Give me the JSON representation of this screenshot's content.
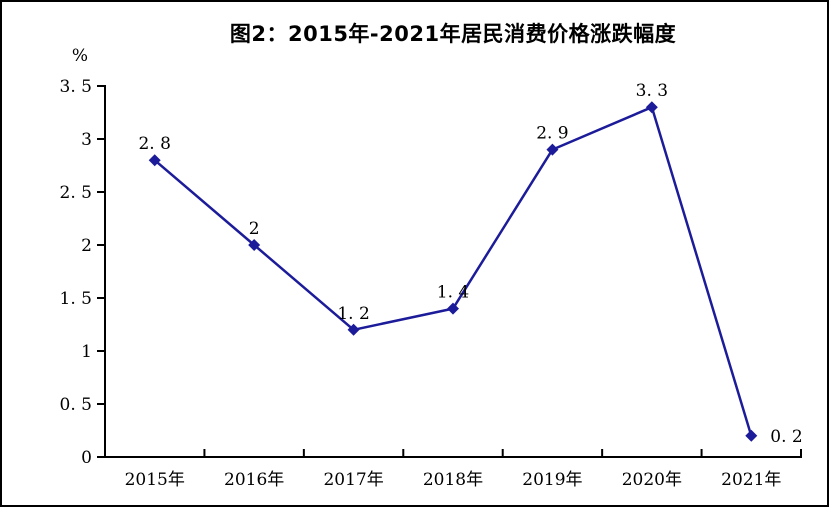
{
  "page": {
    "background_color": "#ffffff",
    "border_color": "#000000"
  },
  "chart_data": {
    "type": "line",
    "title": "图2：2015年-2021年居民消费价格涨跌幅度",
    "unit_label": "%",
    "xlabel": "",
    "ylabel": "%",
    "categories": [
      "2015年",
      "2016年",
      "2017年",
      "2018年",
      "2019年",
      "2020年",
      "2021年"
    ],
    "series": [
      {
        "name": "居民消费价格涨跌幅度",
        "values": [
          2.8,
          2,
          1.2,
          1.4,
          2.9,
          3.3,
          0.2
        ]
      }
    ],
    "point_labels": [
      "2. 8",
      "2",
      "1. 2",
      "1. 4",
      "2. 9",
      "3. 3",
      "0. 2"
    ],
    "point_label_positions": [
      "above",
      "above",
      "above",
      "above",
      "above",
      "above",
      "right"
    ],
    "ylim": [
      0,
      3.5
    ],
    "y_ticks": [
      0,
      0.5,
      1,
      1.5,
      2,
      2.5,
      3,
      3.5
    ],
    "y_tick_labels": [
      "0",
      "0. 5",
      "1",
      "1. 5",
      "2",
      "2. 5",
      "3",
      "3. 5"
    ],
    "grid": "off",
    "legend": "none",
    "marker": "diamond",
    "series_color": "#1c1c9a",
    "axis_color": "#000000",
    "label_color": "#000000"
  }
}
